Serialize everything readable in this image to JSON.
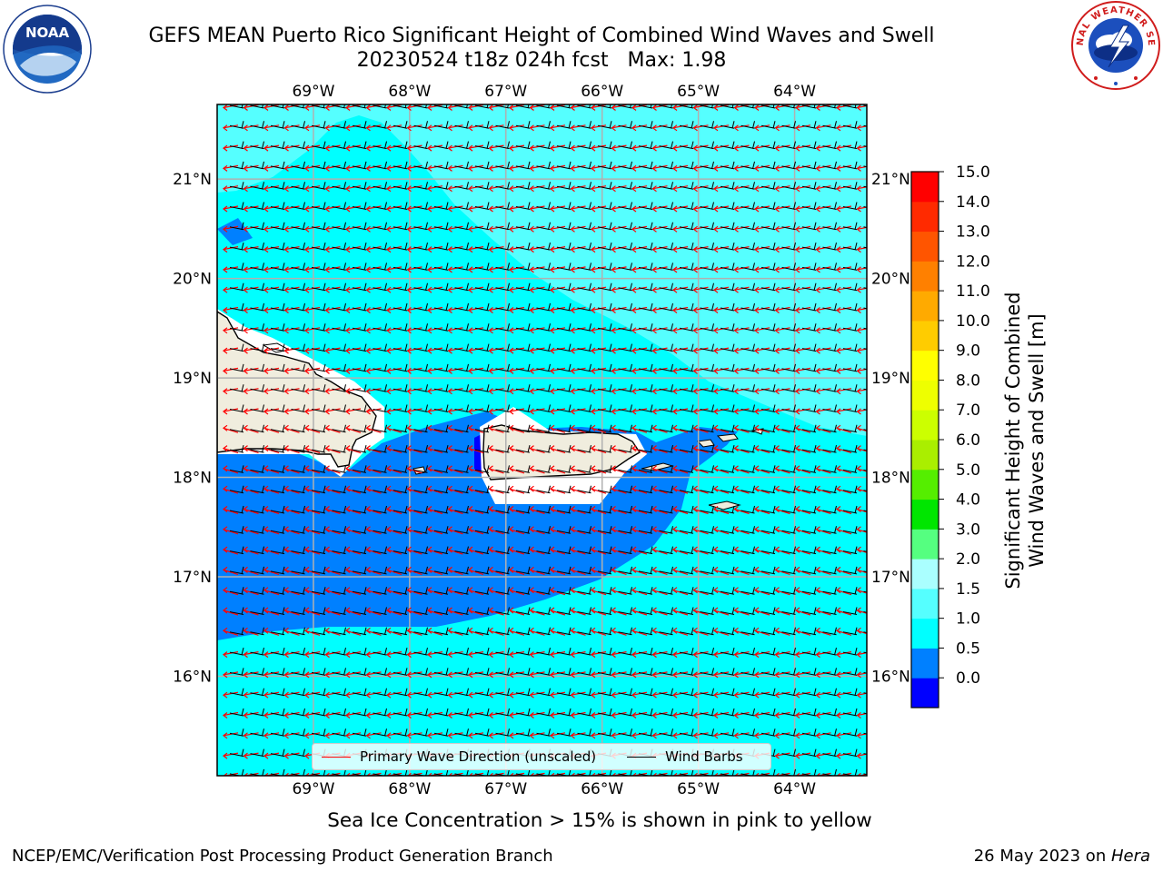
{
  "title": {
    "line1": "GEFS MEAN Puerto Rico Significant Height of Combined Wind Waves and Swell",
    "line2": "20230524 t18z 024h fcst   Max: 1.98"
  },
  "map": {
    "lon_labels": [
      "69°W",
      "68°W",
      "67°W",
      "66°W",
      "65°W",
      "64°W"
    ],
    "lat_labels": [
      "21°N",
      "20°N",
      "19°N",
      "18°N",
      "17°N",
      "16°N"
    ],
    "lon_values": [
      -69,
      -68,
      -67,
      -66,
      -65,
      -64
    ],
    "lat_values": [
      21,
      20,
      19,
      18,
      17,
      16
    ],
    "lon_range": [
      -70,
      -63.25
    ],
    "lat_range": [
      15,
      21.75
    ],
    "colors": {
      "land": "#f0edde",
      "coast": "#000000",
      "no_data": "#ffffff",
      "grid": "#b0b0b0"
    },
    "field_regions": [
      {
        "level": "1.5-2.0",
        "color": "#55ffff"
      },
      {
        "level": "1.0-1.5",
        "color": "#00ffff"
      },
      {
        "level": "0.5-1.0",
        "color": "#0080ff"
      },
      {
        "level": "0.0-0.5",
        "color": "#0000ff"
      }
    ]
  },
  "colorbar": {
    "label_line1": "Significant Height of Combined",
    "label_line2": "Wind Waves and Swell [m]",
    "ticks": [
      "15.0",
      "14.0",
      "13.0",
      "12.0",
      "11.0",
      "10.0",
      "9.0",
      "8.0",
      "7.0",
      "6.0",
      "5.0",
      "4.0",
      "3.0",
      "2.0",
      "1.5",
      "1.0",
      "0.5",
      "0.0"
    ],
    "bands_bottom_to_top": [
      "#0000ff",
      "#0080ff",
      "#00ffff",
      "#55ffff",
      "#aaffff",
      "#55ff80",
      "#00e600",
      "#55ee00",
      "#aaee00",
      "#ccff00",
      "#eeff00",
      "#ffff00",
      "#ffcc00",
      "#ffaa00",
      "#ff8000",
      "#ff5500",
      "#ff2a00",
      "#ff0000"
    ]
  },
  "legend": {
    "primary_wave": "Primary Wave Direction (unscaled)",
    "wind_barbs": "Wind Barbs",
    "primary_wave_color": "#ff0000",
    "wind_barbs_color": "#000000"
  },
  "subtitle": "Sea Ice Concentration > 15% is shown in pink to yellow",
  "footer": {
    "left": "NCEP/EMC/Verification Post Processing Product Generation Branch",
    "right_date": "26 May 2023 on ",
    "right_host": "Hera"
  },
  "logos": {
    "noaa_icon": "noaa-logo-icon",
    "noaa_text": "NOAA",
    "nws_icon": "nws-logo-icon",
    "nws_text": "NATIONAL WEATHER SERVICE"
  }
}
